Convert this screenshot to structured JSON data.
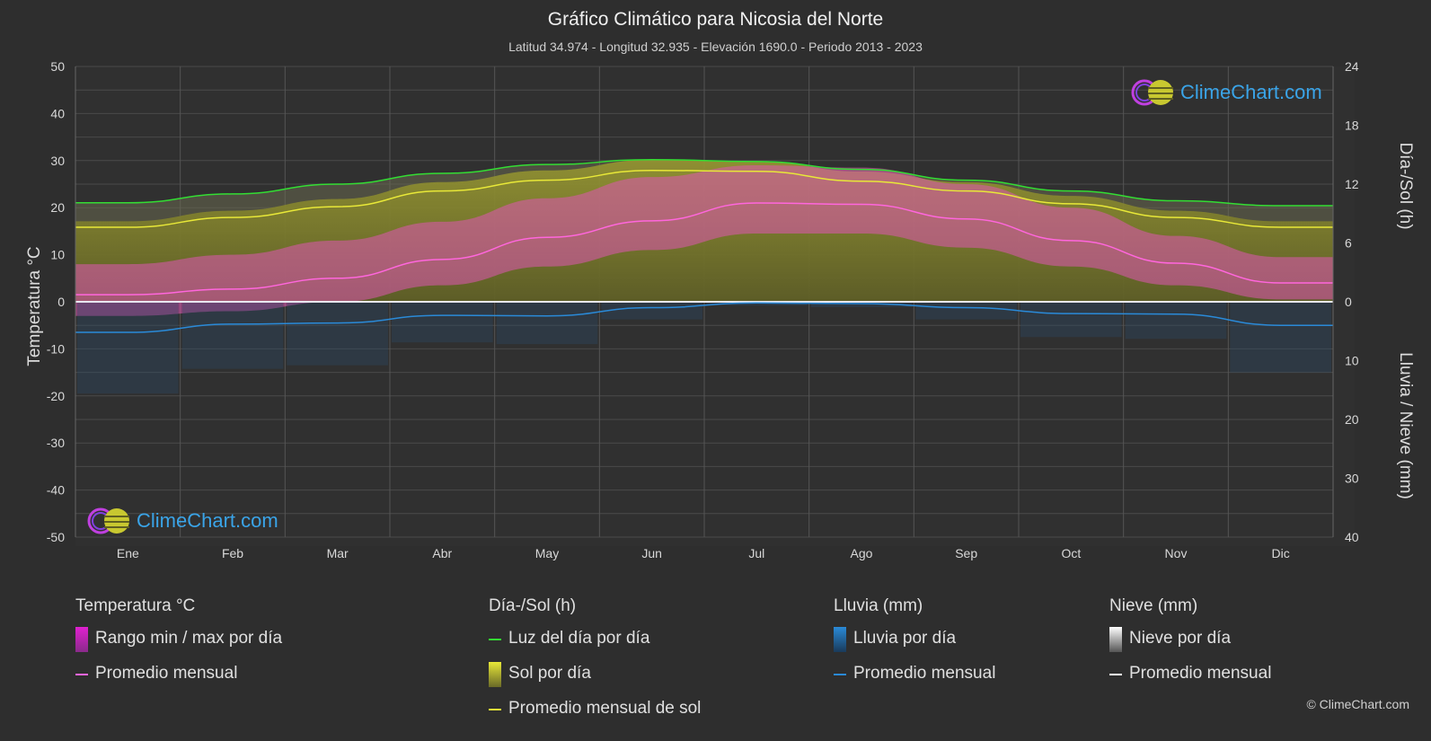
{
  "title": "Gráfico Climático para Nicosia del Norte",
  "subtitle": "Latitud 34.974 - Longitud 32.935 - Elevación 1690.0 - Periodo 2013 - 2023",
  "y_left_label": "Temperatura °C",
  "y_right_top_label": "Día-/Sol (h)",
  "y_right_bottom_label": "Lluvia / Nieve (mm)",
  "logo_text": "ClimeChart.com",
  "copyright": "© ClimeChart.com",
  "legend": {
    "temp": {
      "header": "Temperatura °C",
      "range": "Rango min / max por día",
      "avg": "Promedio mensual"
    },
    "sun": {
      "header": "Día-/Sol (h)",
      "daylight": "Luz del día por día",
      "sun": "Sol por día",
      "avg": "Promedio mensual de sol"
    },
    "rain": {
      "header": "Lluvia (mm)",
      "day": "Lluvia por día",
      "avg": "Promedio mensual"
    },
    "snow": {
      "header": "Nieve (mm)",
      "day": "Nieve por día",
      "avg": "Promedio mensual"
    }
  },
  "colors": {
    "background": "#2e2e2e",
    "daylight": "#33dd33",
    "sun_avg": "#e8e838",
    "sun_fill": "#8a8a2a",
    "temp_avg": "#ff66dd",
    "temp_range": "#e040b8",
    "rain": "#2a8ad8",
    "snow": "#ffffff"
  },
  "chart_data": {
    "type": "area",
    "x_categories": [
      "Ene",
      "Feb",
      "Mar",
      "Abr",
      "May",
      "Jun",
      "Jul",
      "Ago",
      "Sep",
      "Oct",
      "Nov",
      "Dic"
    ],
    "y_left": {
      "label": "Temperatura °C",
      "range": [
        -50,
        50
      ],
      "ticks": [
        50,
        40,
        30,
        20,
        10,
        0,
        -10,
        -20,
        -30,
        -40,
        -50
      ]
    },
    "y_right_top": {
      "label": "Día-/Sol (h)",
      "range": [
        0,
        24
      ],
      "ticks": [
        24,
        18,
        12,
        6,
        0
      ]
    },
    "y_right_bottom": {
      "label": "Lluvia / Nieve (mm)",
      "range": [
        0,
        40
      ],
      "ticks": [
        0,
        10,
        20,
        30,
        40
      ]
    },
    "series": [
      {
        "name": "Luz del día por día",
        "unit": "h",
        "values": [
          10.1,
          11.0,
          12.0,
          13.1,
          14.0,
          14.5,
          14.3,
          13.5,
          12.4,
          11.3,
          10.3,
          9.8
        ]
      },
      {
        "name": "Promedio mensual de sol",
        "unit": "h",
        "values": [
          7.6,
          8.6,
          9.7,
          11.3,
          12.4,
          13.4,
          13.3,
          12.3,
          11.3,
          10.0,
          8.6,
          7.6
        ]
      },
      {
        "name": "Promedio mensual (Temperatura)",
        "unit": "°C",
        "values": [
          1.5,
          2.7,
          5.0,
          9.0,
          13.7,
          17.2,
          21.0,
          20.7,
          17.6,
          13.0,
          8.2,
          4.0
        ]
      },
      {
        "name": "Rango min / max por día (max)",
        "unit": "°C",
        "values": [
          8.0,
          10.0,
          13.0,
          17.0,
          22.0,
          26.5,
          29.0,
          28.5,
          25.0,
          20.0,
          14.0,
          9.5
        ]
      },
      {
        "name": "Rango min / max por día (min)",
        "unit": "°C",
        "values": [
          -3.0,
          -2.0,
          0.0,
          3.5,
          7.5,
          11.0,
          14.5,
          14.5,
          11.5,
          7.5,
          3.5,
          0.5
        ]
      },
      {
        "name": "Promedio mensual (Lluvia)",
        "unit": "mm",
        "values": [
          5.2,
          3.8,
          3.6,
          2.3,
          2.4,
          1.0,
          0.2,
          0.3,
          1.0,
          2.0,
          2.1,
          4.0
        ]
      },
      {
        "name": "Promedio mensual (Nieve)",
        "unit": "mm",
        "values": [
          0,
          0,
          0,
          0,
          0,
          0,
          0,
          0,
          0,
          0,
          0,
          0
        ]
      }
    ],
    "grid": true
  }
}
